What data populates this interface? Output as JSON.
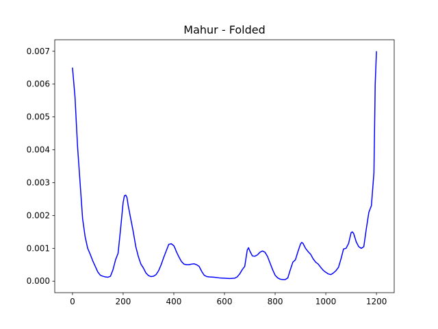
{
  "chart_data": {
    "type": "line",
    "title": "Mahur - Folded",
    "xlabel": "",
    "ylabel": "",
    "xlim": [
      -70,
      1270
    ],
    "ylim": [
      -0.00035,
      0.00735
    ],
    "xticks": [
      0,
      200,
      400,
      600,
      800,
      1000,
      1200
    ],
    "xtick_labels": [
      "0",
      "200",
      "400",
      "600",
      "800",
      "1000",
      "1200"
    ],
    "yticks": [
      0.0,
      0.001,
      0.002,
      0.003,
      0.004,
      0.005,
      0.006,
      0.007
    ],
    "ytick_labels": [
      "0.000",
      "0.001",
      "0.002",
      "0.003",
      "0.004",
      "0.005",
      "0.006",
      "0.007"
    ],
    "grid": false,
    "series": [
      {
        "color": "#0000ff",
        "x": [
          0,
          10,
          20,
          30,
          40,
          50,
          60,
          70,
          80,
          90,
          100,
          110,
          120,
          130,
          140,
          150,
          160,
          170,
          180,
          190,
          200,
          205,
          210,
          215,
          220,
          230,
          240,
          250,
          260,
          270,
          280,
          290,
          300,
          310,
          320,
          330,
          340,
          350,
          360,
          370,
          380,
          390,
          400,
          405,
          410,
          420,
          430,
          440,
          450,
          460,
          470,
          480,
          490,
          500,
          510,
          520,
          530,
          540,
          560,
          580,
          600,
          620,
          640,
          650,
          660,
          670,
          680,
          690,
          695,
          700,
          710,
          720,
          730,
          740,
          750,
          760,
          770,
          780,
          790,
          800,
          810,
          820,
          830,
          840,
          850,
          860,
          870,
          880,
          890,
          900,
          905,
          910,
          920,
          930,
          940,
          950,
          960,
          970,
          980,
          990,
          1000,
          1010,
          1020,
          1030,
          1040,
          1050,
          1060,
          1070,
          1080,
          1090,
          1100,
          1105,
          1110,
          1120,
          1130,
          1140,
          1150,
          1160,
          1170,
          1180,
          1190,
          1195,
          1200
        ],
        "y": [
          0.0065,
          0.0056,
          0.0041,
          0.003,
          0.0019,
          0.00135,
          0.001,
          0.00082,
          0.00062,
          0.00045,
          0.00028,
          0.00018,
          0.00015,
          0.00013,
          0.00012,
          0.00015,
          0.00035,
          0.00065,
          0.00085,
          0.0016,
          0.0024,
          0.0026,
          0.00262,
          0.00255,
          0.0023,
          0.0019,
          0.0015,
          0.00105,
          0.00075,
          0.00052,
          0.0004,
          0.00025,
          0.00017,
          0.00014,
          0.00015,
          0.0002,
          0.00032,
          0.0005,
          0.00072,
          0.00092,
          0.00112,
          0.00114,
          0.00108,
          0.001,
          0.0009,
          0.00074,
          0.0006,
          0.00052,
          0.0005,
          0.0005,
          0.00052,
          0.00053,
          0.0005,
          0.00045,
          0.0003,
          0.00018,
          0.00014,
          0.00013,
          0.00012,
          0.0001,
          9e-05,
          8e-05,
          9e-05,
          0.00013,
          0.00022,
          0.00035,
          0.00045,
          0.00095,
          0.00102,
          0.00092,
          0.00077,
          0.00076,
          0.0008,
          0.00088,
          0.00092,
          0.00088,
          0.00075,
          0.00055,
          0.00035,
          0.00018,
          0.0001,
          6e-05,
          5e-05,
          5e-05,
          0.0001,
          0.00035,
          0.00058,
          0.00065,
          0.0009,
          0.00113,
          0.00118,
          0.00115,
          0.001,
          0.0009,
          0.00082,
          0.00068,
          0.00058,
          0.00052,
          0.00042,
          0.00033,
          0.00027,
          0.00022,
          0.0002,
          0.00025,
          0.00032,
          0.00042,
          0.00068,
          0.00098,
          0.001,
          0.00115,
          0.00148,
          0.0015,
          0.00145,
          0.0012,
          0.00105,
          0.001,
          0.00105,
          0.0016,
          0.0021,
          0.0023,
          0.0033,
          0.006,
          0.007
        ]
      }
    ]
  }
}
